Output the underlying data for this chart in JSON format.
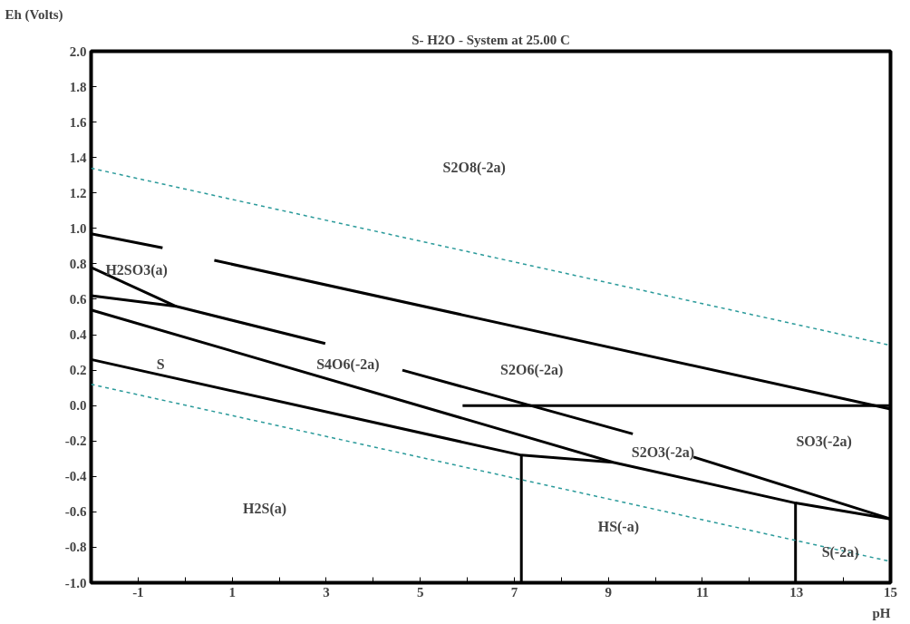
{
  "chart_data": {
    "type": "line",
    "title": "S- H2O - System at 25.00 C",
    "xlabel": "pH",
    "ylabel": "Eh (Volts)",
    "xlim": [
      -2,
      15
    ],
    "ylim": [
      -1.0,
      2.0
    ],
    "xticks": [
      {
        "value": -2,
        "label": null
      },
      -1,
      {
        "value": 0,
        "label": null
      },
      1,
      {
        "value": 2,
        "label": null
      },
      3,
      {
        "value": 4,
        "label": null
      },
      5,
      {
        "value": 6,
        "label": null
      },
      7,
      {
        "value": 8,
        "label": null
      },
      9,
      {
        "value": 10,
        "label": null
      },
      11,
      {
        "value": 12,
        "label": null
      },
      13,
      {
        "value": 14,
        "label": null
      },
      15
    ],
    "yticks": [
      {
        "value": -1.0,
        "label": "-1.0"
      },
      -0.8,
      -0.6,
      -0.4,
      -0.2,
      {
        "value": 0.0,
        "label": "0.0"
      },
      0.2,
      0.4,
      0.6,
      0.8,
      {
        "value": 1.0,
        "label": "1.0"
      },
      1.2,
      1.4,
      1.6,
      1.8,
      {
        "value": 2.0,
        "label": "2.0"
      }
    ],
    "grid": false,
    "series": [
      {
        "color": "#000000",
        "x": [
          -2,
          -0.48,
          null,
          0.62,
          15
        ],
        "values": [
          0.97,
          0.89,
          null,
          0.82,
          -0.02
        ]
      },
      {
        "color": "#000000",
        "x": [
          -2,
          -0.19
        ],
        "values": [
          0.78,
          0.56
        ]
      },
      {
        "color": "#000000",
        "x": [
          -2,
          -0.19,
          2.98,
          null,
          4.62,
          9.52
        ],
        "values": [
          0.62,
          0.56,
          0.35,
          null,
          0.2,
          -0.16
        ]
      },
      {
        "color": "#000000",
        "x": [
          -2,
          9.1,
          12.98,
          15
        ],
        "values": [
          0.54,
          -0.32,
          -0.55,
          -0.64
        ]
      },
      {
        "color": "#000000",
        "x": [
          -2,
          7.15,
          9.1
        ],
        "values": [
          0.26,
          -0.28,
          -0.32
        ]
      },
      {
        "color": "#000000",
        "x": [
          10.81,
          15
        ],
        "values": [
          -0.29,
          -0.64
        ]
      },
      {
        "color": "#000000",
        "x": [
          5.9,
          15
        ],
        "values": [
          0.0,
          0.0
        ]
      },
      {
        "color": "#000000",
        "x": [
          7.15,
          7.15
        ],
        "values": [
          -0.28,
          -1.0
        ]
      },
      {
        "color": "#000000",
        "x": [
          12.98,
          12.98
        ],
        "values": [
          -0.55,
          -1.0
        ]
      },
      {
        "color": "#2a9a9a",
        "line_style": "dashed",
        "x": [
          -2,
          15
        ],
        "values": [
          1.34,
          0.34
        ]
      },
      {
        "color": "#2a9a9a",
        "line_style": "dashed",
        "x": [
          -2,
          15
        ],
        "values": [
          0.12,
          -0.88
        ]
      }
    ],
    "annotations": [
      "S2O8(-2a)",
      "H2SO3(a)",
      "S",
      "S4O6(-2a)",
      "S2O6(-2a)",
      "S2O3(-2a)",
      "SO3(-2a)",
      "H2S(a)",
      "HS(-a)",
      "S(-2a)"
    ]
  }
}
